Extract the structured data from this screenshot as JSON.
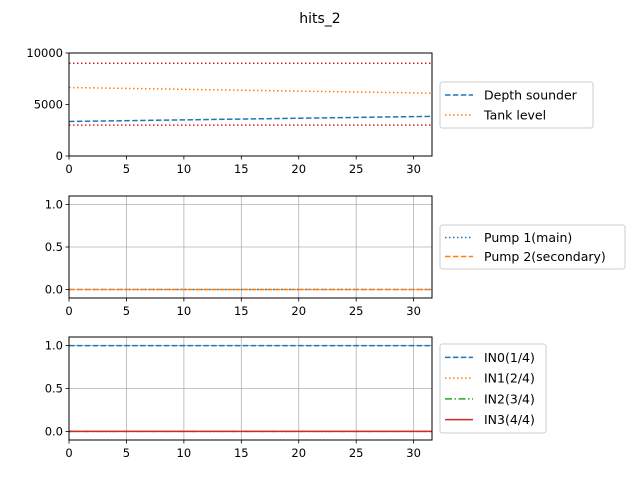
{
  "figure_title": "hits_2",
  "chart_data": [
    {
      "type": "line",
      "title": "",
      "xlabel": "",
      "ylabel": "",
      "xlim": [
        0,
        31.6
      ],
      "ylim": [
        0,
        10000
      ],
      "grid": false,
      "legend_placement": "outside-right",
      "x_ticks": [
        0,
        5,
        10,
        15,
        20,
        25,
        30
      ],
      "x_tick_labels": [
        "0",
        "5",
        "10",
        "15",
        "20",
        "25",
        "30"
      ],
      "y_ticks": [
        0,
        5000,
        10000
      ],
      "y_tick_labels": [
        "0",
        "5000",
        "10000"
      ],
      "series": [
        {
          "name": "Depth sounder",
          "x": [
            0,
            31.6
          ],
          "values": [
            3350,
            3850
          ],
          "color": "#1f77b4",
          "style": "dashed",
          "in_legend": true
        },
        {
          "name": "Tank level",
          "x": [
            0,
            31.6
          ],
          "values": [
            6650,
            6100
          ],
          "color": "#ff7f0e",
          "style": "dotted",
          "in_legend": true
        },
        {
          "name": "",
          "x": [
            0,
            31.6
          ],
          "values": [
            9000,
            9000
          ],
          "color": "#d62728",
          "style": "dotted",
          "in_legend": false
        },
        {
          "name": "",
          "x": [
            0,
            31.6
          ],
          "values": [
            3000,
            3000
          ],
          "color": "#d62728",
          "style": "dotted",
          "in_legend": false
        }
      ]
    },
    {
      "type": "line",
      "title": "",
      "xlabel": "",
      "ylabel": "",
      "xlim": [
        0,
        31.6
      ],
      "ylim": [
        -0.1,
        1.1
      ],
      "grid": true,
      "legend_placement": "outside-right",
      "x_ticks": [
        0,
        5,
        10,
        15,
        20,
        25,
        30
      ],
      "x_tick_labels": [
        "0",
        "5",
        "10",
        "15",
        "20",
        "25",
        "30"
      ],
      "y_ticks": [
        0,
        0.5,
        1
      ],
      "y_tick_labels": [
        "0.0",
        "0.5",
        "1.0"
      ],
      "series": [
        {
          "name": "Pump 1(main)",
          "x": [
            0,
            31.6
          ],
          "values": [
            0,
            0
          ],
          "color": "#1f77b4",
          "style": "dotted",
          "in_legend": true
        },
        {
          "name": "Pump 2(secondary)",
          "x": [
            0,
            31.6
          ],
          "values": [
            0,
            0
          ],
          "color": "#ff7f0e",
          "style": "dashed",
          "in_legend": true
        }
      ]
    },
    {
      "type": "line",
      "title": "",
      "xlabel": "",
      "ylabel": "",
      "xlim": [
        0,
        31.6
      ],
      "ylim": [
        -0.1,
        1.1
      ],
      "grid": true,
      "legend_placement": "outside-right",
      "x_ticks": [
        0,
        5,
        10,
        15,
        20,
        25,
        30
      ],
      "x_tick_labels": [
        "0",
        "5",
        "10",
        "15",
        "20",
        "25",
        "30"
      ],
      "y_ticks": [
        0,
        0.5,
        1
      ],
      "y_tick_labels": [
        "0.0",
        "0.5",
        "1.0"
      ],
      "series": [
        {
          "name": "IN0(1/4)",
          "x": [
            0,
            31.6
          ],
          "values": [
            1,
            1
          ],
          "color": "#1f77b4",
          "style": "dashed",
          "in_legend": true
        },
        {
          "name": "IN1(2/4)",
          "x": [
            0,
            31.6
          ],
          "values": [
            0,
            0
          ],
          "color": "#ff7f0e",
          "style": "dotted",
          "in_legend": true
        },
        {
          "name": "IN2(3/4)",
          "x": [
            0,
            31.6
          ],
          "values": [
            0,
            0
          ],
          "color": "#2ca02c",
          "style": "dashdot",
          "in_legend": true
        },
        {
          "name": "IN3(4/4)",
          "x": [
            0,
            31.6
          ],
          "values": [
            0,
            0
          ],
          "color": "#d62728",
          "style": "solid",
          "in_legend": true
        }
      ]
    }
  ]
}
